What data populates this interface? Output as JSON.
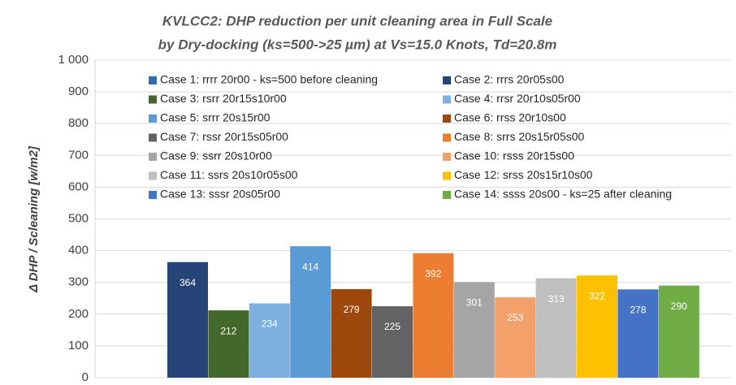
{
  "chart_data": {
    "type": "bar",
    "title": "KVLCC2: DHP reduction  per unit cleaning area in Full Scale",
    "subtitle": "by Dry-docking (ks=500->25 µm) at Vs=15.0 Knots, Td=20.8m",
    "y_label": "Δ DHP / Scleaning [w/m2]",
    "ylim": [
      0,
      1000
    ],
    "yticks": [
      0,
      100,
      200,
      300,
      400,
      500,
      600,
      700,
      800,
      900,
      {
        "value": 1000,
        "label": "1 000"
      }
    ],
    "grid": true,
    "legend": "top",
    "series": [
      {
        "name": "Case 1: rrrr 20r00 - ks=500 before cleaning",
        "color": "#2e6db0",
        "values": [
          null
        ]
      },
      {
        "name": "Case 2: rrrs 20r05s00",
        "color": "#264478",
        "values": [
          364
        ]
      },
      {
        "name": "Case 3: rsrr 20r15s10r00",
        "color": "#43682b",
        "values": [
          212
        ]
      },
      {
        "name": "Case 4: rrsr 20r10s05r00",
        "color": "#7cafdd",
        "values": [
          234
        ]
      },
      {
        "name": "Case 5: srrr 20s15r00",
        "color": "#5b9bd5",
        "values": [
          414
        ]
      },
      {
        "name": "Case 6: rrss 20r10s00",
        "color": "#9e480e",
        "values": [
          279
        ]
      },
      {
        "name": "Case 7: rssr 20r15s05r00",
        "color": "#636363",
        "values": [
          225
        ]
      },
      {
        "name": "Case 8: srrs 20s15r05s00",
        "color": "#ed7d31",
        "values": [
          392
        ]
      },
      {
        "name": "Case 9: ssrr 20s10r00",
        "color": "#a5a5a5",
        "values": [
          301
        ]
      },
      {
        "name": "Case 10: rsss 20r15s00",
        "color": "#f4a06a",
        "values": [
          253
        ]
      },
      {
        "name": "Case 11: ssrs 20s10r05s00",
        "color": "#bfbfbf",
        "values": [
          313
        ]
      },
      {
        "name": "Case 12: srss 20s15r10s00",
        "color": "#ffc000",
        "values": [
          322
        ]
      },
      {
        "name": "Case 13: sssr 20s05r00",
        "color": "#4472c4",
        "values": [
          278
        ]
      },
      {
        "name": "Case 14: ssss 20s00 - ks=25 after cleaning",
        "color": "#70ad47",
        "values": [
          290
        ]
      }
    ]
  }
}
